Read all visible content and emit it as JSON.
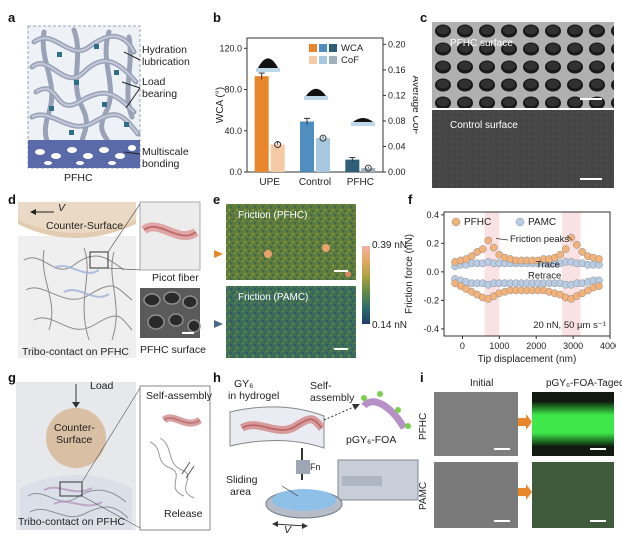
{
  "panels": {
    "a": {
      "label": "a",
      "annotations": [
        "Hydration lubrication",
        "Load bearing",
        "Multiscale bonding"
      ],
      "bottom": "PFHC"
    },
    "b": {
      "label": "b",
      "legend": [
        "WCA",
        "CoF"
      ],
      "ylabel_left": "WCA (°)",
      "ylabel_right": "Average CoF"
    },
    "c": {
      "label": "c",
      "top": "PFHC surface",
      "bottom": "Control surface"
    },
    "d": {
      "label": "d",
      "velocity": "V",
      "counter": "Counter-Surface",
      "fiber": "Picot fiber",
      "caption": "Tribo-contact on PFHC",
      "surface": "PFHC surface"
    },
    "e": {
      "label": "e",
      "top": "Friction (PFHC)",
      "bottom": "Friction (PAMC)",
      "cbar_max": "0.39 nN",
      "cbar_min": "0.14 nN"
    },
    "f": {
      "label": "f",
      "legend": [
        "PFHC",
        "PAMC"
      ],
      "peaks": "Friction peaks",
      "trace": "Trace",
      "retrace": "Retrace",
      "cond": "20 nN, 50 µm s⁻¹",
      "xlabel": "Tip displacement (nm)",
      "ylabel": "Friction force (nN)"
    },
    "g": {
      "label": "g",
      "load": "Load",
      "counter1": "Counter-",
      "counter2": "Surface",
      "selfassembly": "Self-assembly",
      "release": "Release",
      "caption": "Tribo-contact on PFHC"
    },
    "h": {
      "label": "h",
      "gy1": "GY₆",
      "gy2": "in hydrogel",
      "self1": "Self-",
      "self2": "assembly",
      "pgy": "pGY₆-FOA",
      "fn": "Fn",
      "sliding1": "Sliding",
      "sliding2": "area",
      "v": "V"
    },
    "i": {
      "label": "i",
      "col1": "Initial",
      "col2": "pGY₆-FOA-Taged",
      "row1": "PFHC",
      "row2": "PAMC"
    }
  },
  "chart_data": [
    {
      "panel": "b",
      "type": "bar",
      "categories": [
        "UPE",
        "Control",
        "PFHC"
      ],
      "series": [
        {
          "name": "WCA",
          "axis": "left",
          "values": [
            93,
            49,
            12
          ],
          "errors": [
            3,
            3,
            2
          ]
        },
        {
          "name": "CoF",
          "axis": "right",
          "values": [
            0.043,
            0.053,
            0.006
          ],
          "errors": [
            0.004,
            0.003,
            0.002
          ]
        }
      ],
      "ylim_left": [
        0,
        130
      ],
      "yticks_left": [
        0.0,
        40.0,
        80.0,
        120.0
      ],
      "ylim_right": [
        0,
        0.21
      ],
      "yticks_right": [
        0.0,
        0.04,
        0.08,
        0.12,
        0.16,
        0.2
      ],
      "colors": {
        "UPE": [
          "#e8862b",
          "#f4c9a4"
        ],
        "Control": [
          "#4f8fc0",
          "#a8c8e2"
        ],
        "PFHC": [
          "#2f5f78",
          "#9eb0bc"
        ]
      }
    },
    {
      "panel": "f",
      "type": "scatter",
      "xlim": [
        -500,
        4000
      ],
      "xticks": [
        0,
        1000,
        2000,
        3000,
        4000
      ],
      "ylim": [
        -0.45,
        0.42
      ],
      "yticks": [
        -0.4,
        -0.2,
        0.0,
        0.2,
        0.4
      ],
      "series": [
        {
          "name": "PFHC",
          "color": "#f3b27a",
          "x": [
            -200,
            -50,
            100,
            250,
            400,
            550,
            700,
            850,
            1000,
            1150,
            1300,
            1450,
            1600,
            1750,
            1900,
            2050,
            2200,
            2350,
            2500,
            2650,
            2800,
            2950,
            3100,
            3250,
            3400,
            3550,
            3700
          ],
          "trace": [
            0.07,
            0.08,
            0.09,
            0.11,
            0.14,
            0.16,
            0.22,
            0.17,
            0.12,
            0.1,
            0.09,
            0.08,
            0.08,
            0.08,
            0.08,
            0.08,
            0.09,
            0.09,
            0.1,
            0.12,
            0.16,
            0.24,
            0.19,
            0.14,
            0.11,
            0.1,
            0.09
          ],
          "retrace": [
            -0.08,
            -0.1,
            -0.12,
            -0.14,
            -0.16,
            -0.18,
            -0.19,
            -0.17,
            -0.15,
            -0.14,
            -0.13,
            -0.13,
            -0.13,
            -0.13,
            -0.13,
            -0.13,
            -0.13,
            -0.14,
            -0.15,
            -0.16,
            -0.18,
            -0.19,
            -0.17,
            -0.15,
            -0.13,
            -0.11,
            -0.1
          ]
        },
        {
          "name": "PAMC",
          "color": "#b8cce4",
          "x": [
            -200,
            -50,
            100,
            250,
            400,
            550,
            700,
            850,
            1000,
            1150,
            1300,
            1450,
            1600,
            1750,
            1900,
            2050,
            2200,
            2350,
            2500,
            2650,
            2800,
            2950,
            3100,
            3250,
            3400,
            3550,
            3700
          ],
          "trace": [
            0.04,
            0.05,
            0.05,
            0.06,
            0.06,
            0.06,
            0.07,
            0.06,
            0.06,
            0.06,
            0.06,
            0.06,
            0.06,
            0.06,
            0.06,
            0.06,
            0.06,
            0.06,
            0.06,
            0.06,
            0.07,
            0.07,
            0.06,
            0.06,
            0.05,
            0.05,
            0.05
          ],
          "retrace": [
            -0.05,
            -0.06,
            -0.07,
            -0.08,
            -0.08,
            -0.08,
            -0.09,
            -0.08,
            -0.08,
            -0.08,
            -0.08,
            -0.08,
            -0.08,
            -0.08,
            -0.08,
            -0.08,
            -0.08,
            -0.08,
            -0.08,
            -0.08,
            -0.09,
            -0.09,
            -0.08,
            -0.08,
            -0.07,
            -0.06,
            -0.06
          ]
        }
      ],
      "highlight_x": [
        [
          600,
          1000
        ],
        [
          2700,
          3200
        ]
      ]
    }
  ]
}
